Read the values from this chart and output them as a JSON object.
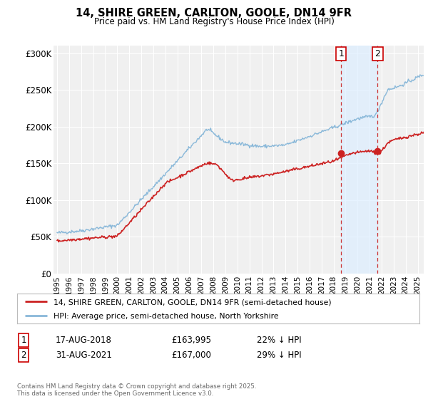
{
  "title": "14, SHIRE GREEN, CARLTON, GOOLE, DN14 9FR",
  "subtitle": "Price paid vs. HM Land Registry's House Price Index (HPI)",
  "ylim": [
    0,
    310000
  ],
  "yticks": [
    0,
    50000,
    100000,
    150000,
    200000,
    250000,
    300000
  ],
  "ytick_labels": [
    "£0",
    "£50K",
    "£100K",
    "£150K",
    "£200K",
    "£250K",
    "£300K"
  ],
  "xlim_start": 1994.7,
  "xlim_end": 2025.5,
  "xtick_years": [
    1995,
    1996,
    1997,
    1998,
    1999,
    2000,
    2001,
    2002,
    2003,
    2004,
    2005,
    2006,
    2007,
    2008,
    2009,
    2010,
    2011,
    2012,
    2013,
    2014,
    2015,
    2016,
    2017,
    2018,
    2019,
    2020,
    2021,
    2022,
    2023,
    2024,
    2025
  ],
  "hpi_color": "#89b8d9",
  "sale_color": "#cc2222",
  "marker1_date": 2018.63,
  "marker2_date": 2021.67,
  "marker1_value": 163995,
  "marker2_value": 167000,
  "vline_color": "#cc3333",
  "shade_color": "#ddeeff",
  "legend_label1": "14, SHIRE GREEN, CARLTON, GOOLE, DN14 9FR (semi-detached house)",
  "legend_label2": "HPI: Average price, semi-detached house, North Yorkshire",
  "ann1_date_str": "17-AUG-2018",
  "ann2_date_str": "31-AUG-2021",
  "ann1_price": "£163,995",
  "ann2_price": "£167,000",
  "ann1_hpi": "22% ↓ HPI",
  "ann2_hpi": "29% ↓ HPI",
  "footer": "Contains HM Land Registry data © Crown copyright and database right 2025.\nThis data is licensed under the Open Government Licence v3.0.",
  "bg_color": "#ffffff",
  "plot_bg_color": "#f0f0f0",
  "grid_color": "#ffffff"
}
